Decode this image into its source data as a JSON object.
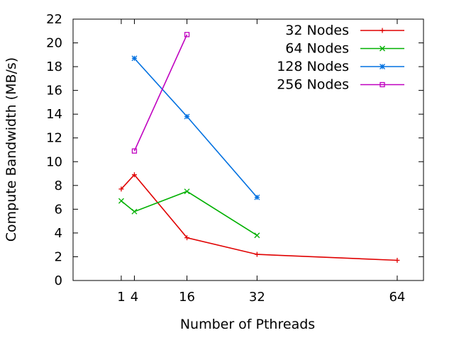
{
  "chart_data": {
    "type": "line",
    "title": "",
    "xlabel": "Number of Pthreads",
    "ylabel": "Compute Bandwidth (MB/s)",
    "xlim": [
      -10,
      70
    ],
    "ylim": [
      0,
      22
    ],
    "xticks": [
      1,
      4,
      16,
      32,
      64
    ],
    "xtick_labels": [
      "1",
      "4",
      "16",
      "32",
      "64"
    ],
    "yticks": [
      0,
      2,
      4,
      6,
      8,
      10,
      12,
      14,
      16,
      18,
      20,
      22
    ],
    "grid": false,
    "legend_position": "top-right",
    "series": [
      {
        "name": "32 Nodes",
        "color": "#e00000",
        "marker": "plus",
        "x": [
          1,
          4,
          16,
          32,
          64
        ],
        "y": [
          7.7,
          8.9,
          3.6,
          2.2,
          1.7
        ]
      },
      {
        "name": "64 Nodes",
        "color": "#00b000",
        "marker": "cross",
        "x": [
          1,
          4,
          16,
          32
        ],
        "y": [
          6.7,
          5.8,
          7.5,
          3.8
        ]
      },
      {
        "name": "128 Nodes",
        "color": "#0070e0",
        "marker": "star",
        "x": [
          4,
          16,
          32
        ],
        "y": [
          18.7,
          13.8,
          7.0
        ]
      },
      {
        "name": "256 Nodes",
        "color": "#c000c0",
        "marker": "square",
        "x": [
          4,
          16
        ],
        "y": [
          10.9,
          20.7
        ]
      }
    ]
  }
}
